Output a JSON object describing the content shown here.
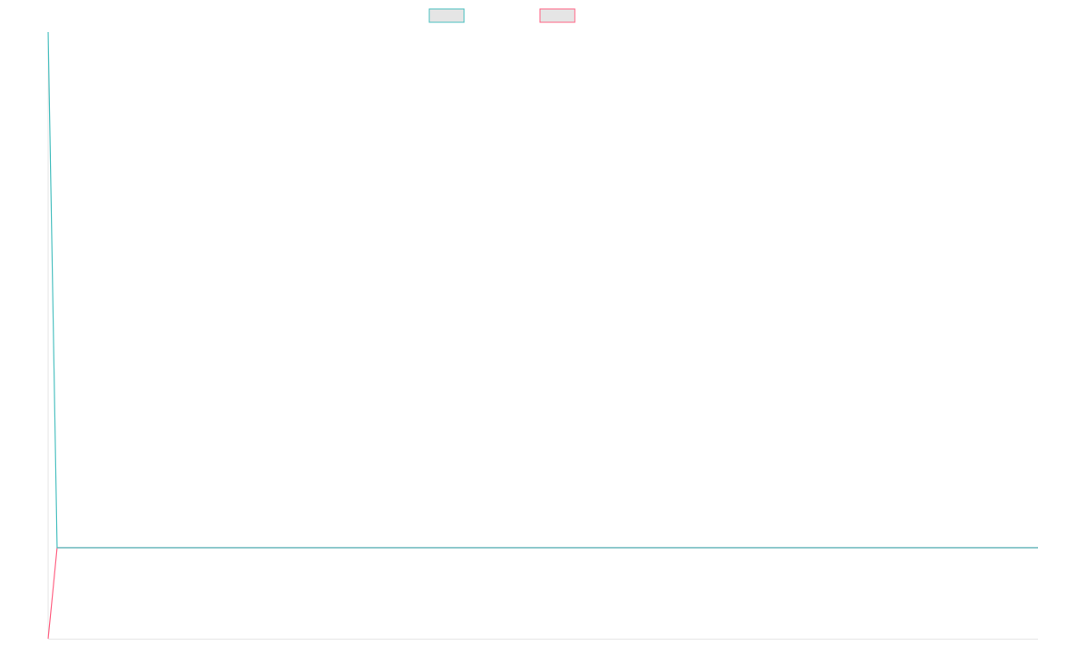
{
  "chart_data": {
    "type": "line",
    "title": "",
    "xlabel": "",
    "ylabel": "",
    "ylim": [
      0,
      100
    ],
    "grid": false,
    "legend": "top-center",
    "point_count": 112,
    "series": [
      {
        "color": "#4bc0c0",
        "start_value": 100,
        "steady_value": 15
      },
      {
        "color": "#ff6384",
        "start_value": 0,
        "steady_value": 15
      }
    ],
    "axis_color": "#e5e5e5",
    "legend_fill": "#e5e5e5"
  }
}
